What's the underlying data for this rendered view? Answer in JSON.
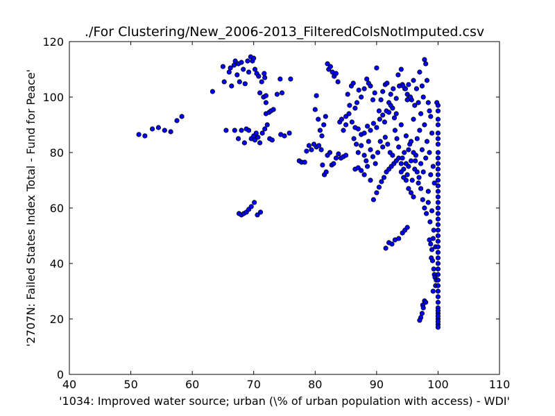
{
  "chart_data": {
    "type": "scatter",
    "title": "./For Clustering/New_2006-2013_FilteredColsNotImputed.csv",
    "xlabel": "'1034: Improved water source; urban  (\\% of urban population with access) - WDI'",
    "ylabel": "'2707N: Failed States Index Total - Fund for Peace'",
    "xlim": [
      40,
      110
    ],
    "ylim": [
      0,
      120
    ],
    "xticks": [
      40,
      50,
      60,
      70,
      80,
      90,
      100,
      110
    ],
    "yticks": [
      0,
      20,
      40,
      60,
      80,
      100,
      120
    ],
    "grid": false,
    "legend": "none",
    "marker_color": "#0000ff",
    "marker_edge_color": "#000000",
    "points": [
      [
        51.3,
        86.5
      ],
      [
        52.3,
        86
      ],
      [
        53.5,
        88.5
      ],
      [
        54.5,
        89
      ],
      [
        55.5,
        88
      ],
      [
        56.5,
        87.5
      ],
      [
        57.5,
        91.5
      ],
      [
        58.3,
        93
      ],
      [
        63.3,
        102
      ],
      [
        65,
        111
      ],
      [
        65.2,
        105.5
      ],
      [
        65.5,
        88
      ],
      [
        66,
        109
      ],
      [
        66.2,
        110.5
      ],
      [
        66.4,
        104
      ],
      [
        66.8,
        111.5
      ],
      [
        67,
        113
      ],
      [
        67.3,
        108
      ],
      [
        67.5,
        112
      ],
      [
        67.7,
        105.5
      ],
      [
        68,
        112.5
      ],
      [
        68.3,
        110
      ],
      [
        68.6,
        104.8
      ],
      [
        69,
        113
      ],
      [
        69.2,
        109
      ],
      [
        69.5,
        114.5
      ],
      [
        69.8,
        113
      ],
      [
        70,
        114
      ],
      [
        70.2,
        110
      ],
      [
        70.5,
        108.5
      ],
      [
        70.8,
        107.5
      ],
      [
        71,
        101.5
      ],
      [
        71.3,
        105.5
      ],
      [
        71.6,
        100
      ],
      [
        71.7,
        108.5
      ],
      [
        71.8,
        107
      ],
      [
        72,
        100.5
      ],
      [
        72,
        98
      ],
      [
        72,
        94
      ],
      [
        72.5,
        94.5
      ],
      [
        72.8,
        95
      ],
      [
        73.2,
        95.5
      ],
      [
        73.8,
        101
      ],
      [
        74.3,
        106.5
      ],
      [
        74.6,
        101.5
      ],
      [
        76,
        106.5
      ],
      [
        66.9,
        88
      ],
      [
        67.5,
        85
      ],
      [
        68,
        88
      ],
      [
        68.5,
        83.5
      ],
      [
        68.8,
        88.5
      ],
      [
        69.2,
        88
      ],
      [
        69.6,
        85
      ],
      [
        70,
        86
      ],
      [
        70.2,
        84.5
      ],
      [
        70.4,
        87
      ],
      [
        70.7,
        85.5
      ],
      [
        71,
        83.5
      ],
      [
        71.4,
        87
      ],
      [
        71.8,
        88.5
      ],
      [
        72.2,
        90
      ],
      [
        72.6,
        85
      ],
      [
        73,
        84.5
      ],
      [
        74.4,
        86.5
      ],
      [
        75,
        86
      ],
      [
        75.8,
        87
      ],
      [
        67.6,
        58
      ],
      [
        68,
        57.5
      ],
      [
        68.4,
        58
      ],
      [
        68.8,
        58.5
      ],
      [
        69.2,
        59.5
      ],
      [
        69.6,
        60.5
      ],
      [
        70.1,
        62
      ],
      [
        70.6,
        57.5
      ],
      [
        71.1,
        58.5
      ],
      [
        77.4,
        77
      ],
      [
        77.8,
        76.5
      ],
      [
        78.3,
        76.5
      ],
      [
        78.6,
        80.5
      ],
      [
        79,
        82.5
      ],
      [
        79.4,
        81
      ],
      [
        79.8,
        83
      ],
      [
        80.2,
        82
      ],
      [
        80.6,
        82.5
      ],
      [
        81,
        81
      ],
      [
        81.2,
        75.5
      ],
      [
        81.5,
        72
      ],
      [
        81.8,
        73
      ],
      [
        82,
        79
      ],
      [
        82.4,
        80
      ],
      [
        82.7,
        75.5
      ],
      [
        83,
        76
      ],
      [
        83.4,
        78
      ],
      [
        83.8,
        79.5
      ],
      [
        84.2,
        78
      ],
      [
        84.6,
        78.5
      ],
      [
        85,
        79
      ],
      [
        80,
        95.5
      ],
      [
        80.2,
        100.5
      ],
      [
        80.5,
        92
      ],
      [
        80.8,
        88
      ],
      [
        81.1,
        86
      ],
      [
        81.4,
        90
      ],
      [
        81.7,
        93
      ],
      [
        82,
        112
      ],
      [
        82.2,
        110
      ],
      [
        82.5,
        111
      ],
      [
        82.8,
        109
      ],
      [
        83.1,
        107.5
      ],
      [
        83.4,
        108.5
      ],
      [
        83.7,
        105.5
      ],
      [
        84,
        91
      ],
      [
        84.3,
        92
      ],
      [
        84.6,
        88
      ],
      [
        85,
        90
      ],
      [
        85.3,
        101
      ],
      [
        85.6,
        97
      ],
      [
        85.9,
        104
      ],
      [
        86.2,
        105
      ],
      [
        86.5,
        96
      ],
      [
        86.8,
        98
      ],
      [
        87.1,
        102.5
      ],
      [
        87.5,
        100
      ],
      [
        88,
        103
      ],
      [
        88.4,
        106.5
      ],
      [
        88.7,
        105
      ],
      [
        89,
        104
      ],
      [
        89.4,
        99
      ],
      [
        89.7,
        101.5
      ],
      [
        90,
        110.5
      ],
      [
        90.4,
        95
      ],
      [
        90.7,
        99
      ],
      [
        91,
        102
      ],
      [
        91.4,
        104.5
      ],
      [
        91.7,
        105
      ],
      [
        92,
        98
      ],
      [
        92.3,
        101
      ],
      [
        92.7,
        103
      ],
      [
        93.2,
        99.5
      ],
      [
        93.7,
        104
      ],
      [
        94.2,
        104.5
      ],
      [
        94.6,
        103
      ],
      [
        95,
        101
      ],
      [
        95.3,
        100
      ],
      [
        95.7,
        99
      ],
      [
        85,
        93
      ],
      [
        85.5,
        94
      ],
      [
        86,
        91
      ],
      [
        86.5,
        89
      ],
      [
        87,
        88.5
      ],
      [
        87.5,
        86.5
      ],
      [
        88,
        87
      ],
      [
        88.5,
        89.5
      ],
      [
        89,
        88
      ],
      [
        89.5,
        90.5
      ],
      [
        90,
        89
      ],
      [
        90.5,
        92
      ],
      [
        91,
        93.5
      ],
      [
        91.3,
        91
      ],
      [
        91.6,
        95
      ],
      [
        92,
        94.5
      ],
      [
        92.3,
        97
      ],
      [
        92.6,
        96
      ],
      [
        92.9,
        92.5
      ],
      [
        93.2,
        94
      ],
      [
        86.3,
        85
      ],
      [
        86.7,
        83
      ],
      [
        87,
        80
      ],
      [
        87.5,
        82.5
      ],
      [
        88,
        79
      ],
      [
        88.3,
        77
      ],
      [
        88.7,
        84
      ],
      [
        89,
        81
      ],
      [
        89.4,
        78.5
      ],
      [
        89.8,
        76
      ],
      [
        90.2,
        80
      ],
      [
        90.6,
        84
      ],
      [
        91,
        82
      ],
      [
        91.4,
        85.5
      ],
      [
        91.8,
        83
      ],
      [
        92.2,
        80
      ],
      [
        92.6,
        79
      ],
      [
        86.5,
        74
      ],
      [
        87,
        74.5
      ],
      [
        87.5,
        73.5
      ],
      [
        88,
        72
      ],
      [
        88.5,
        75
      ],
      [
        89,
        70
      ],
      [
        89.5,
        63
      ],
      [
        90,
        65.5
      ],
      [
        90.4,
        67.5
      ],
      [
        90.8,
        69.5
      ],
      [
        91.2,
        71
      ],
      [
        91.6,
        73
      ],
      [
        92,
        74
      ],
      [
        92.4,
        75
      ],
      [
        92.8,
        76
      ],
      [
        93.2,
        77
      ],
      [
        93.6,
        78
      ],
      [
        94,
        76
      ],
      [
        94.4,
        74
      ],
      [
        94.8,
        70
      ],
      [
        95.2,
        67
      ],
      [
        95.6,
        65.5
      ],
      [
        96,
        64
      ],
      [
        91.5,
        45.5
      ],
      [
        92,
        47.5
      ],
      [
        92.5,
        47
      ],
      [
        93,
        48.5
      ],
      [
        93.6,
        49
      ],
      [
        94.2,
        51
      ],
      [
        94.6,
        52
      ],
      [
        95,
        53
      ],
      [
        93.5,
        108
      ],
      [
        94,
        110
      ],
      [
        94.3,
        104
      ],
      [
        94.7,
        103
      ],
      [
        95,
        99
      ],
      [
        95.2,
        104.5
      ],
      [
        95.5,
        100
      ],
      [
        96,
        106
      ],
      [
        96.2,
        97
      ],
      [
        96.5,
        103
      ],
      [
        96.8,
        98
      ],
      [
        97,
        109
      ],
      [
        97.2,
        94
      ],
      [
        97.4,
        104
      ],
      [
        97.6,
        100
      ],
      [
        97.8,
        113.5
      ],
      [
        98,
        112
      ],
      [
        98.2,
        106
      ],
      [
        98.4,
        98
      ],
      [
        98.6,
        95
      ],
      [
        98.8,
        93
      ],
      [
        93,
        88
      ],
      [
        93.3,
        85
      ],
      [
        93.6,
        82
      ],
      [
        94,
        90
      ],
      [
        94.2,
        78
      ],
      [
        94.5,
        80
      ],
      [
        94.8,
        86
      ],
      [
        95,
        72
      ],
      [
        95.2,
        75
      ],
      [
        95.4,
        83
      ],
      [
        95.6,
        77
      ],
      [
        95.8,
        70
      ],
      [
        96,
        92
      ],
      [
        96.2,
        74
      ],
      [
        96.4,
        79
      ],
      [
        96.6,
        85
      ],
      [
        96.8,
        69
      ],
      [
        97,
        88
      ],
      [
        97.2,
        76
      ],
      [
        97.4,
        81
      ],
      [
        97.6,
        73
      ],
      [
        97.8,
        90
      ],
      [
        98,
        78
      ],
      [
        98.2,
        84
      ],
      [
        98.4,
        66
      ],
      [
        98.6,
        80
      ],
      [
        98.8,
        72
      ],
      [
        99,
        87
      ],
      [
        99.2,
        75
      ],
      [
        99.4,
        69
      ],
      [
        94,
        73
      ],
      [
        94.4,
        71
      ],
      [
        94.8,
        76
      ],
      [
        95.2,
        81
      ],
      [
        95.6,
        84
      ],
      [
        96,
        80
      ],
      [
        96.3,
        77
      ],
      [
        96.6,
        73
      ],
      [
        96.9,
        71
      ],
      [
        97.2,
        67
      ],
      [
        97.5,
        63
      ],
      [
        97.8,
        60
      ],
      [
        98.1,
        58
      ],
      [
        98.4,
        62
      ],
      [
        98.7,
        55
      ],
      [
        99,
        59
      ],
      [
        99.3,
        52
      ],
      [
        99.6,
        46
      ],
      [
        99.2,
        49
      ],
      [
        98.9,
        42
      ],
      [
        97.5,
        25
      ],
      [
        97.8,
        26.5
      ],
      [
        98,
        26
      ],
      [
        97.4,
        22
      ],
      [
        97.2,
        20.5
      ],
      [
        97,
        19.5
      ],
      [
        97.6,
        24
      ],
      [
        98.6,
        48.5
      ],
      [
        98.8,
        47
      ],
      [
        99,
        45
      ],
      [
        99.1,
        41
      ],
      [
        99.3,
        38
      ],
      [
        99.4,
        36
      ],
      [
        99.5,
        35
      ],
      [
        99.6,
        32
      ],
      [
        99.7,
        34
      ],
      [
        99.2,
        30
      ],
      [
        99.8,
        98
      ],
      [
        100,
        97
      ],
      [
        100,
        95
      ],
      [
        100,
        92
      ],
      [
        100,
        90
      ],
      [
        100,
        87
      ],
      [
        100,
        85
      ],
      [
        100,
        83
      ],
      [
        100,
        80
      ],
      [
        100,
        78
      ],
      [
        100,
        76
      ],
      [
        100,
        74
      ],
      [
        100,
        72
      ],
      [
        100,
        70
      ],
      [
        100,
        68
      ],
      [
        100,
        66
      ],
      [
        100,
        64
      ],
      [
        100,
        62
      ],
      [
        100,
        60
      ],
      [
        100,
        58
      ],
      [
        100,
        56
      ],
      [
        100,
        54
      ],
      [
        100,
        52
      ],
      [
        100,
        50
      ],
      [
        100,
        48
      ],
      [
        100,
        46
      ],
      [
        100,
        44
      ],
      [
        100,
        42
      ],
      [
        100,
        40
      ],
      [
        100,
        38
      ],
      [
        100,
        36
      ],
      [
        100,
        34
      ],
      [
        100,
        32
      ],
      [
        100,
        30
      ],
      [
        100,
        28
      ],
      [
        100,
        26
      ],
      [
        100,
        24
      ],
      [
        100,
        22
      ],
      [
        100,
        20
      ],
      [
        100,
        18
      ],
      [
        100,
        17
      ],
      [
        100,
        19
      ],
      [
        100,
        21
      ],
      [
        100,
        23
      ]
    ]
  }
}
